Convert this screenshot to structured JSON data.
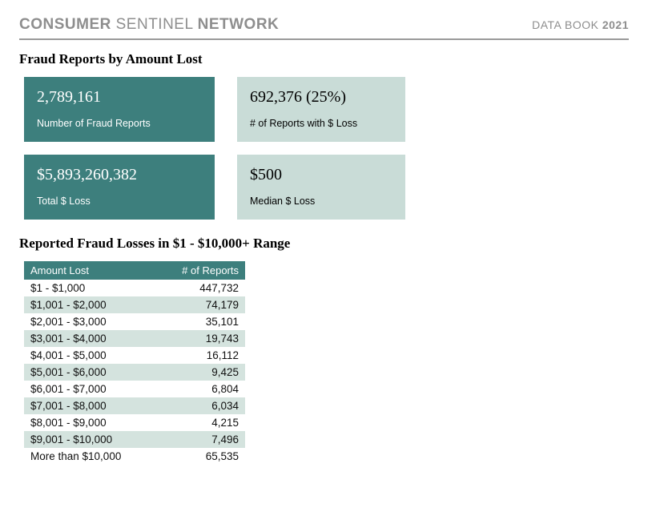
{
  "header": {
    "left_bold1": "CONSUMER",
    "left_light": "SENTINEL",
    "left_bold2": "NETWORK",
    "right_text": "DATA BOOK",
    "right_year": "2021"
  },
  "section1": {
    "title": "Fraud Reports by Amount Lost"
  },
  "cards": [
    {
      "value": "2,789,161",
      "label": "Number of Fraud Reports",
      "variant": "dark"
    },
    {
      "value": "692,376  (25%)",
      "label": "# of Reports with $ Loss",
      "variant": "light"
    },
    {
      "value": "$5,893,260,382",
      "label": "Total $ Loss",
      "variant": "dark"
    },
    {
      "value": "$500",
      "label": "Median $ Loss",
      "variant": "light"
    }
  ],
  "section2": {
    "title": "Reported Fraud Losses in $1 - $10,000+ Range"
  },
  "table": {
    "col_left": "Amount Lost",
    "col_right": "# of Reports",
    "rows": [
      {
        "range": "$1 - $1,000",
        "count": "447,732"
      },
      {
        "range": "$1,001 - $2,000",
        "count": "74,179"
      },
      {
        "range": "$2,001 - $3,000",
        "count": "35,101"
      },
      {
        "range": "$3,001 - $4,000",
        "count": "19,743"
      },
      {
        "range": "$4,001 - $5,000",
        "count": "16,112"
      },
      {
        "range": "$5,001 - $6,000",
        "count": "9,425"
      },
      {
        "range": "$6,001 - $7,000",
        "count": "6,804"
      },
      {
        "range": "$7,001 - $8,000",
        "count": "6,034"
      },
      {
        "range": "$8,001 - $9,000",
        "count": "4,215"
      },
      {
        "range": "$9,001 - $10,000",
        "count": "7,496"
      },
      {
        "range": "More than $10,000",
        "count": "65,535"
      }
    ]
  },
  "colors": {
    "teal_dark": "#3d7f7d",
    "teal_light": "#c9dcd7",
    "row_even": "#d4e3de",
    "header_gray": "#8e8e8e",
    "rule_gray": "#9a9a9a"
  }
}
